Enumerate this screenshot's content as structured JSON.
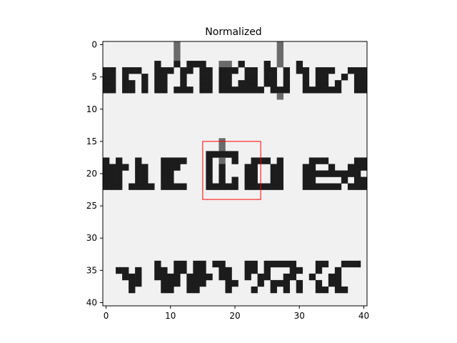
{
  "chart_data": {
    "type": "heatmap",
    "title": "Normalized",
    "xlabel": "",
    "ylabel": "",
    "colormap": "gray",
    "x_range": [
      -0.5,
      40.5
    ],
    "y_range": [
      40.5,
      -0.5
    ],
    "x_ticks": [
      0,
      10,
      20,
      30,
      40
    ],
    "y_ticks": [
      0,
      5,
      10,
      15,
      20,
      25,
      30,
      35,
      40
    ],
    "grid": false,
    "image_rows": [
      "...........*...............*.............",
      "...........*...............*.............",
      "...........*...............*.............",
      "........#..#.###..**.#...#.*..#..........",
      "##.###..###.##.##.###.##.##.#.##.###..###",
      "##.#..#.##..#..##.##..##.##.#..#.##..#.##",
      "##.##.#.##..#..##.##.###.##.#..#.##.#..##",
      "##.##.#.##.###.##.#######.###..######..##",
      "...........................*.............",
      ".........................................",
      ".........................................",
      ".........................................",
      ".........................................",
      ".........................................",
      ".........................................",
      "..................*......................",
      "..................*......................",
      "................#####....................",
      "#.#..#...####...#.*.#..###.#....###....##",
      "####.##..###....#.#...##..##...##..#..###",
      "###..##..##.....#.#...##..##...#########.",
      "###..##..##.....#.#.#.##..##...##....#.##",
      "###.####.####...#####.######...######.###",
      ".........................................",
      ".........................................",
      ".........................................",
      ".........................................",
      ".........................................",
      ".........................................",
      ".........................................",
      ".........................................",
      ".........................................",
      ".........................................",
      ".........................................",
      "........#..##.##.##...##.#####...##..###.",
      "..##.#..##.##.##..##..##.#...##..#..#....",
      "...###..####.####.##..#.##..##..#..##....",
      "....##...###.###...##...#.###.#..#.##....",
      "....#....##..##....#...#..#.#.#..##.##...",
      ".........................................",
      "........................................."
    ],
    "highlight_box": {
      "x": 15,
      "y": 15,
      "width": 9,
      "height": 9,
      "color": "#ff0000"
    }
  }
}
